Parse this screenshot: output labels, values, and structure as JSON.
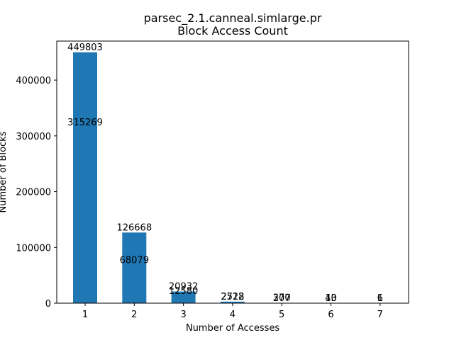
{
  "chart_data": {
    "type": "bar",
    "title": "parsec_2.1.canneal.simlarge.pr",
    "subtitle": "Block Access Count",
    "xlabel": "Number of Accesses",
    "ylabel": "Number of Blocks",
    "categories": [
      "1",
      "2",
      "3",
      "4",
      "5",
      "6",
      "7"
    ],
    "series": [
      {
        "values": [
          449803,
          126668,
          20932,
          2712,
          207,
          13,
          1
        ]
      },
      {
        "values": [
          315269,
          68079,
          12580,
          2528,
          370,
          40,
          6
        ]
      }
    ],
    "visible_values": [
      449803,
      126668,
      20932,
      2712,
      370,
      40,
      6
    ],
    "ylim": [
      0,
      470000
    ],
    "yticks": [
      0,
      100000,
      200000,
      300000,
      400000
    ],
    "yticks_labels": [
      "0",
      "100000",
      "200000",
      "300000",
      "400000"
    ],
    "grid": false,
    "bar_color": "#1f77b4"
  }
}
